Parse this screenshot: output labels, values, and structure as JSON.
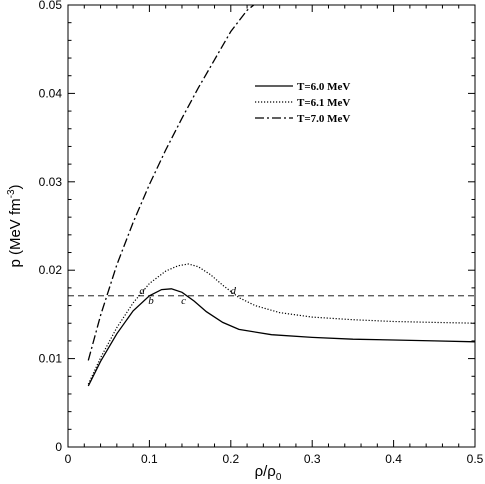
{
  "chart_data": {
    "type": "line",
    "xlabel": "ρ/ρ",
    "xlabel_sub": "0",
    "ylabel": "p (MeV fm",
    "ylabel_sup": "-3",
    "ylabel_close": ")",
    "xlim": [
      0,
      0.5
    ],
    "ylim": [
      0,
      0.05
    ],
    "xticks": [
      0,
      0.1,
      0.2,
      0.3,
      0.4,
      0.5
    ],
    "xtick_labels": [
      "0",
      "0.1",
      "0.2",
      "0.3",
      "0.4",
      "0.5"
    ],
    "yticks": [
      0,
      0.01,
      0.02,
      0.03,
      0.04,
      0.05
    ],
    "ytick_labels": [
      "0",
      "0.01",
      "0.02",
      "0.03",
      "0.04",
      "0.05"
    ],
    "grid": false,
    "legend_position": "top-right",
    "series": [
      {
        "name": "T=6.0 MeV",
        "style": "solid",
        "x": [
          0.025,
          0.04,
          0.06,
          0.08,
          0.1,
          0.115,
          0.127,
          0.14,
          0.155,
          0.17,
          0.19,
          0.21,
          0.25,
          0.3,
          0.35,
          0.4,
          0.45,
          0.5
        ],
        "y": [
          0.0069,
          0.0097,
          0.0128,
          0.0154,
          0.0171,
          0.0178,
          0.0179,
          0.0175,
          0.0165,
          0.0153,
          0.0141,
          0.0133,
          0.0127,
          0.0124,
          0.0122,
          0.0121,
          0.012,
          0.0119
        ]
      },
      {
        "name": "T=6.1 MeV",
        "style": "dotted",
        "x": [
          0.025,
          0.04,
          0.06,
          0.08,
          0.1,
          0.12,
          0.135,
          0.148,
          0.16,
          0.175,
          0.19,
          0.21,
          0.23,
          0.26,
          0.3,
          0.35,
          0.4,
          0.45,
          0.5
        ],
        "y": [
          0.0071,
          0.0101,
          0.0135,
          0.0163,
          0.0185,
          0.0199,
          0.0205,
          0.0207,
          0.0204,
          0.0195,
          0.0183,
          0.0169,
          0.016,
          0.0152,
          0.0147,
          0.0144,
          0.0142,
          0.0141,
          0.014
        ]
      },
      {
        "name": "T=7.0 MeV",
        "style": "dashdot",
        "x": [
          0.025,
          0.04,
          0.06,
          0.08,
          0.1,
          0.12,
          0.14,
          0.16,
          0.18,
          0.2,
          0.22,
          0.235
        ],
        "y": [
          0.0098,
          0.0149,
          0.0206,
          0.0254,
          0.0297,
          0.0336,
          0.0372,
          0.0406,
          0.0438,
          0.047,
          0.0494,
          0.0505
        ]
      }
    ],
    "reference_line": {
      "style": "dashed",
      "y": 0.0171
    },
    "annotations": [
      {
        "text": "a",
        "x": 0.091,
        "y": 0.0173
      },
      {
        "text": "b",
        "x": 0.102,
        "y": 0.0162
      },
      {
        "text": "c",
        "x": 0.142,
        "y": 0.0162
      },
      {
        "text": "d",
        "x": 0.203,
        "y": 0.0173
      }
    ]
  }
}
